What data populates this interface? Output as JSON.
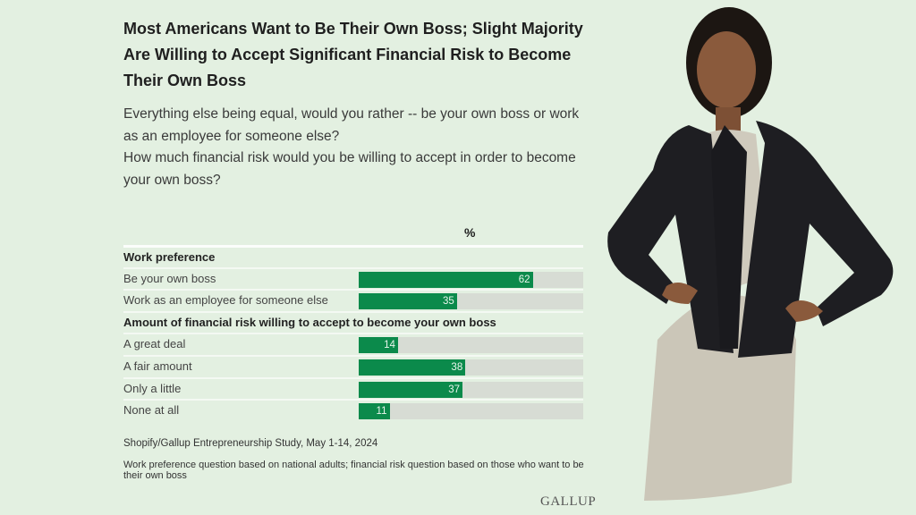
{
  "title": "Most Americans Want to Be Their Own Boss; Slight Majority Are Willing to Accept Significant Financial Risk to Become Their Own Boss",
  "questions": [
    "Everything else being equal, would you rather -- be your own boss or work as an employee for someone else?",
    "How much financial risk would you be willing to accept in order to become your own boss?"
  ],
  "chart_data": {
    "type": "bar",
    "unit_label": "%",
    "xlim": [
      0,
      80
    ],
    "groups": [
      {
        "heading": "Work preference",
        "categories": [
          "Be your own boss",
          "Work as an employee for someone else"
        ],
        "values": [
          62,
          35
        ]
      },
      {
        "heading": "Amount of financial risk willing to accept to become your own boss",
        "categories": [
          "A great deal",
          "A fair amount",
          "Only a little",
          "None at all"
        ],
        "values": [
          14,
          38,
          37,
          11
        ]
      }
    ],
    "colors": {
      "bar": "#0b8a4b",
      "track": "#d7dcd4"
    }
  },
  "source": "Shopify/Gallup Entrepreneurship Study, May 1-14, 2024",
  "note": "Work preference question based on national adults; financial risk question based on those who want to be their own boss",
  "logo": "GALLUP"
}
